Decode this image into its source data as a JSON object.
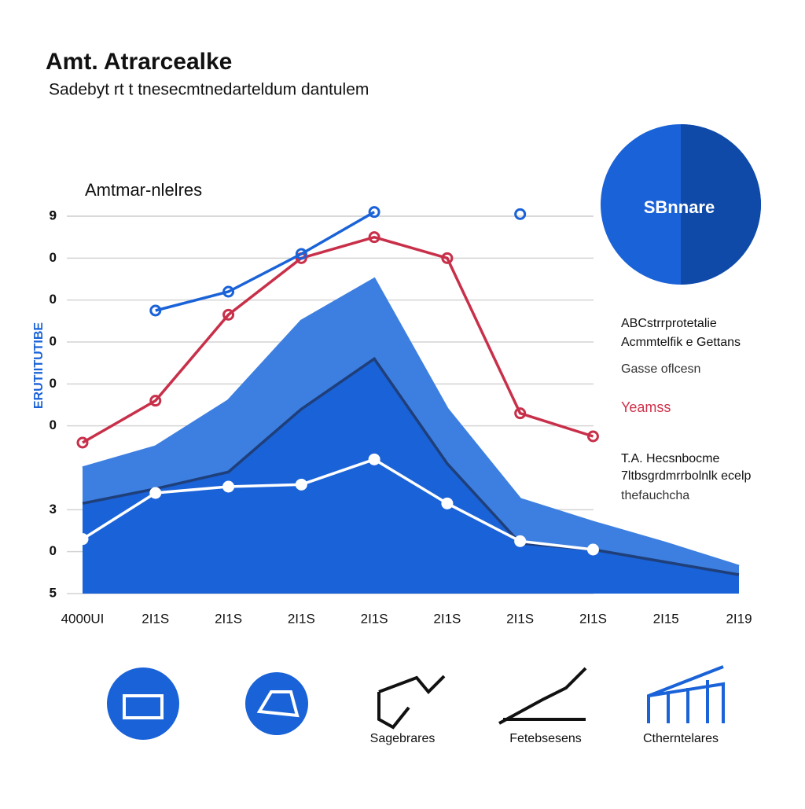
{
  "chart_data": {
    "type": "line",
    "title": "Amt. Atrarcealke",
    "subtitle": "Sadebyt rt t tnesecmtnedarteldum dantulem",
    "chart_label": "Amtmar-nlelres",
    "ylabel": "ERUTIITUTIBE",
    "categories": [
      "4000UI",
      "2I1S",
      "2I1S",
      "2I1S",
      "2I1S",
      "2I1S",
      "2I1S",
      "2I1S",
      "2I15",
      "2I19"
    ],
    "ylim": [
      0,
      9
    ],
    "yticks": [
      {
        "value": 0,
        "label": "5"
      },
      {
        "value": 1,
        "label": "0"
      },
      {
        "value": 2,
        "label": "3"
      },
      9,
      {
        "value": 4,
        "label": "0"
      },
      {
        "value": 5,
        "label": "0"
      },
      {
        "value": 6,
        "label": "0"
      },
      {
        "value": 7,
        "label": "0"
      },
      {
        "value": 8,
        "label": "0"
      },
      {
        "value": 9,
        "label": "9"
      }
    ],
    "grid": true,
    "series": [
      {
        "color": "#3d7fe0",
        "fill": true,
        "values": [
          3.0,
          3.5,
          4.6,
          6.5,
          7.5,
          4.4,
          2.25,
          1.7,
          1.2,
          0.65
        ]
      },
      {
        "color": "#1f3f7a",
        "fill": true,
        "fill_color": "#1a62d8",
        "values": [
          2.15,
          2.5,
          2.9,
          4.4,
          5.6,
          3.1,
          1.2,
          1.05,
          0.75,
          0.45
        ]
      },
      {
        "color": "#ffffff",
        "markers": true,
        "values": [
          1.3,
          2.4,
          2.55,
          2.6,
          3.2,
          2.15,
          1.25,
          1.05,
          null,
          null
        ]
      },
      {
        "color": "#c8304a",
        "markers": true,
        "values": [
          3.6,
          4.6,
          6.65,
          8.0,
          8.5,
          8.0,
          4.3,
          3.75,
          null,
          null
        ]
      },
      {
        "color": "#1a62d8",
        "markers": true,
        "values": [
          null,
          6.75,
          7.2,
          8.1,
          9.1,
          null,
          9.05,
          null,
          null,
          null
        ]
      }
    ],
    "badge": "SBnnare",
    "annotations": [
      {
        "text": "ABCstrrprotetalie",
        "color": "#111"
      },
      {
        "text": "Acmmtelfik e Gettans",
        "color": "#111"
      },
      {
        "text": "Gasse oflcesn",
        "color": "#333"
      },
      {
        "text": "Yeamss",
        "color": "#d0304a"
      },
      {
        "text": "T.A. Hecsnbocme",
        "color": "#111"
      },
      {
        "text": "7ltbsgrdmrrbolnlk ecelp",
        "color": "#111"
      },
      {
        "text": "thefauchcha",
        "color": "#333"
      }
    ]
  },
  "icons": [
    {
      "label": ""
    },
    {
      "label": ""
    },
    {
      "label": "Sagebrares"
    },
    {
      "label": "Fetebsesens"
    },
    {
      "label": "Ctherntelares"
    }
  ]
}
